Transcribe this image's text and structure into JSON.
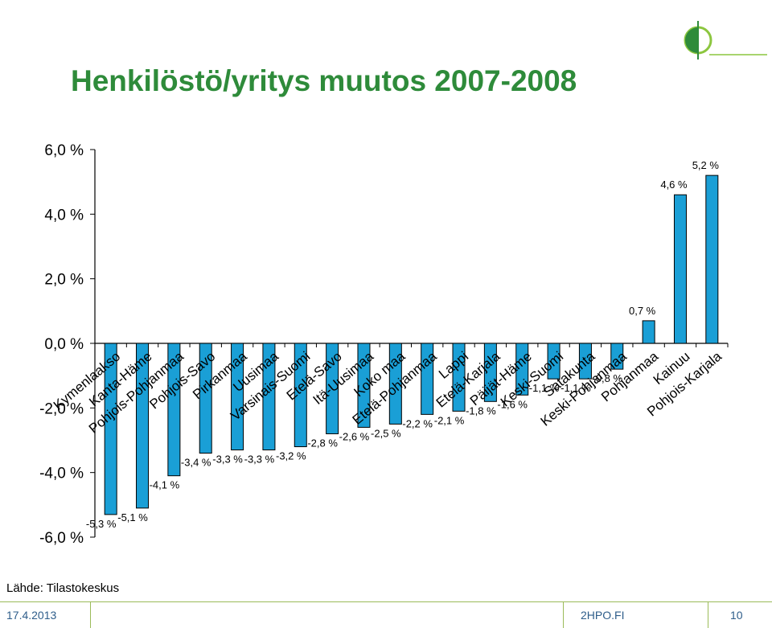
{
  "title": "Henkilöstö/yritys muutos 2007-2008",
  "source": "Lähde: Tilastokeskus",
  "footer": {
    "date": "17.4.2013",
    "site": "2HPO.FI",
    "page": "10"
  },
  "logo": {
    "icon": "circle-logo-icon",
    "colors": [
      "#2e8b3a",
      "#8cc63f"
    ]
  },
  "colors": {
    "bar": "#1a9fd6",
    "title": "#2e8b3a",
    "axis": "#000000"
  },
  "chart_data": {
    "type": "bar",
    "title": "",
    "xlabel": "",
    "ylabel": "",
    "ylim": [
      -6,
      6
    ],
    "y_ticks": [
      "6,0 %",
      "4,0 %",
      "2,0 %",
      "0,0 %",
      "-2,0 %",
      "-4,0 %",
      "-6,0 %"
    ],
    "y_tick_values": [
      6,
      4,
      2,
      0,
      -2,
      -4,
      -6
    ],
    "grid": false,
    "categories": [
      "Kymenlaakso",
      "Kanta-Häme",
      "Pohjois-Pohjanmaa",
      "Pohjois-Savo",
      "Pirkanmaa",
      "Uusimaa",
      "Varsinais-Suomi",
      "Etelä-Savo",
      "Itä-Uusimaa",
      "Koko maa",
      "Etelä-Pohjanmaa",
      "Lappi",
      "Etelä-Karjala",
      "Päijät-Häme",
      "Keski-Suomi",
      "Satakunta",
      "Keski-Pohjanmaa",
      "Pohjanmaa",
      "Kainuu",
      "Pohjois-Karjala"
    ],
    "values": [
      -5.3,
      -5.1,
      -4.1,
      -3.4,
      -3.3,
      -3.3,
      -3.2,
      -2.8,
      -2.6,
      -2.5,
      -2.2,
      -2.1,
      -1.8,
      -1.6,
      -1.1,
      -1.1,
      -0.8,
      0.7,
      4.6,
      5.2
    ],
    "data_labels": [
      "-5,3 %",
      "-5,1 %",
      "-4,1 %",
      "-3,4 %",
      "-3,3 %",
      "-3,3 %",
      "-3,2 %",
      "-2,8 %",
      "-2,6 %",
      "-2,5 %",
      "-2,2 %",
      "-2,1 %",
      "-1,8 %",
      "-1,6 %",
      "-1,1 %",
      "-1,1 %",
      "-0,8 %",
      "0,7 %",
      "4,6 %",
      "5,2 %"
    ]
  }
}
